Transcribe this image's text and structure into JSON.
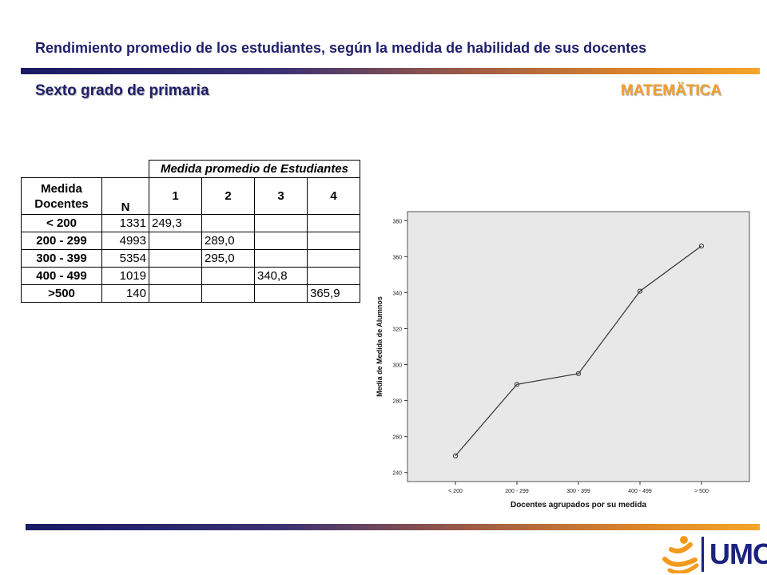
{
  "header": {
    "title": "Rendimiento promedio de los estudiantes, según la medida de habilidad de sus docentes",
    "subtitle": "Sexto grado de primaria",
    "subject": "MATEMÄTICA"
  },
  "table": {
    "group_header": "Medida promedio de Estudiantes",
    "col_label": "Medida Docentes",
    "col_n": "N",
    "col_groups": [
      "1",
      "2",
      "3",
      "4"
    ],
    "rows": [
      {
        "label": "< 200",
        "n": "1331",
        "values": [
          "249,3",
          "",
          "",
          ""
        ]
      },
      {
        "label": "200 - 299",
        "n": "4993",
        "values": [
          "",
          "289,0",
          "",
          ""
        ]
      },
      {
        "label": "300 - 399",
        "n": "5354",
        "values": [
          "",
          "295,0",
          "",
          ""
        ]
      },
      {
        "label": "400 - 499",
        "n": "1019",
        "values": [
          "",
          "",
          "340,8",
          ""
        ]
      },
      {
        "label": ">500",
        "n": "140",
        "values": [
          "",
          "",
          "",
          "365,9"
        ]
      }
    ]
  },
  "chart_data": {
    "type": "line",
    "categories": [
      "< 200",
      "200 - 299",
      "300 - 399",
      "400 - 499",
      "> 500"
    ],
    "values": [
      249.3,
      289.0,
      295.0,
      340.8,
      365.9
    ],
    "xlabel": "Docentes agrupados por su medida",
    "ylabel": "Media de Medida de Alumnos",
    "ylim": [
      235,
      385
    ],
    "yticks": [
      240,
      260,
      280,
      300,
      320,
      340,
      360,
      380
    ],
    "grid": false,
    "colors": {
      "plot_bg": "#e8e8e8",
      "line": "#333333"
    }
  },
  "footer": {
    "logo_text": "UMC",
    "colors": {
      "logo_orange": "#f39a1e",
      "logo_blue": "#1a237e"
    }
  }
}
